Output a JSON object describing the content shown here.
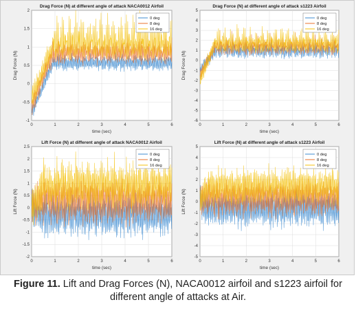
{
  "figure": {
    "caption_label": "Figure 11.",
    "caption_text": "Lift and Drag Forces (N), NACA0012 airfoil and s1223 airfoil for different angle of attacks at Air."
  },
  "colors": {
    "0deg": "#3d8bd0",
    "8deg": "#e8712c",
    "16deg": "#f4c20d",
    "background": "#f0f0f0",
    "axes_bg": "#ffffff",
    "grid": "#dcdcdc"
  },
  "chart_data": [
    {
      "type": "line",
      "title": "Drag Force (N) at different angle of attack NACA0012 Airfoil",
      "xlabel": "time (sec)",
      "ylabel": "Drag Force (N)",
      "xlim": [
        0,
        6
      ],
      "ylim": [
        -1,
        2
      ],
      "xticks": [
        0,
        1,
        2,
        3,
        4,
        5,
        6
      ],
      "yticks": [
        -1,
        -0.5,
        0,
        0.5,
        1,
        1.5,
        2
      ],
      "grid": true,
      "legend": "top-right",
      "series": [
        {
          "name": "0 deg",
          "start": -0.8,
          "rise_end": 0.9,
          "level": 0.55,
          "amp": 0.2,
          "spike": 0.1
        },
        {
          "name": "8 deg",
          "start": -0.6,
          "rise_end": 0.9,
          "level": 0.8,
          "amp": 0.3,
          "spike": 0.2
        },
        {
          "name": "16 deg",
          "start": -0.4,
          "rise_end": 0.9,
          "level": 1.0,
          "amp": 0.35,
          "spike": 0.65
        }
      ]
    },
    {
      "type": "line",
      "title": "Drag Force (N) at different angle of attack s1223 Airfoil",
      "xlabel": "time (sec)",
      "ylabel": "Drag Force (N)",
      "xlim": [
        0,
        6
      ],
      "ylim": [
        -6,
        5
      ],
      "xticks": [
        0,
        1,
        2,
        3,
        4,
        5,
        6
      ],
      "yticks": [
        -6,
        -5,
        -4,
        -3,
        -2,
        -1,
        0,
        1,
        2,
        3,
        4,
        5
      ],
      "grid": true,
      "legend": "top-right",
      "series": [
        {
          "name": "0 deg",
          "start": -1.0,
          "rise_end": 0.6,
          "level": 0.8,
          "amp": 0.6,
          "spike": 0.8
        },
        {
          "name": "8 deg",
          "start": -1.5,
          "rise_end": 0.6,
          "level": 1.2,
          "amp": 0.7,
          "spike": 1.0
        },
        {
          "name": "16 deg",
          "start": -2.0,
          "rise_end": 0.6,
          "level": 1.5,
          "amp": 0.8,
          "spike": 1.3
        }
      ]
    },
    {
      "type": "line",
      "title": "Lift Force (N) at different angle of attack NACA0012 Airfoil",
      "xlabel": "time (sec)",
      "ylabel": "Lift Force (N)",
      "xlim": [
        0,
        6
      ],
      "ylim": [
        -2,
        2.5
      ],
      "xticks": [
        0,
        1,
        2,
        3,
        4,
        5,
        6
      ],
      "yticks": [
        -2,
        -1.5,
        -1,
        -0.5,
        0,
        0.5,
        1,
        1.5,
        2,
        2.5
      ],
      "grid": true,
      "legend": "top-right",
      "series": [
        {
          "name": "0 deg",
          "start": 0.0,
          "rise_end": 0.5,
          "level": -0.4,
          "amp": 0.8,
          "spike": 0.4
        },
        {
          "name": "8 deg",
          "start": 0.0,
          "rise_end": 0.5,
          "level": 0.2,
          "amp": 0.9,
          "spike": 0.4
        },
        {
          "name": "16 deg",
          "start": 0.0,
          "rise_end": 0.5,
          "level": 0.8,
          "amp": 0.9,
          "spike": 0.6
        }
      ]
    },
    {
      "type": "line",
      "title": "Lift Force (N) at different angle of attack s1223 Airfoil",
      "xlabel": "time (sec)",
      "ylabel": "Lift Force (N)",
      "xlim": [
        0,
        6
      ],
      "ylim": [
        -5,
        5
      ],
      "xticks": [
        0,
        1,
        2,
        3,
        4,
        5,
        6
      ],
      "yticks": [
        -5,
        -4,
        -3,
        -2,
        -1,
        0,
        1,
        2,
        3,
        4,
        5
      ],
      "grid": true,
      "legend": "top-right",
      "series": [
        {
          "name": "0 deg",
          "start": 0.0,
          "rise_end": 0.3,
          "level": -0.8,
          "amp": 1.6,
          "spike": 0.5
        },
        {
          "name": "8 deg",
          "start": 0.0,
          "rise_end": 0.3,
          "level": 0.2,
          "amp": 1.6,
          "spike": 0.5
        },
        {
          "name": "16 deg",
          "start": 0.0,
          "rise_end": 0.3,
          "level": 1.2,
          "amp": 1.6,
          "spike": 0.7
        }
      ]
    }
  ]
}
